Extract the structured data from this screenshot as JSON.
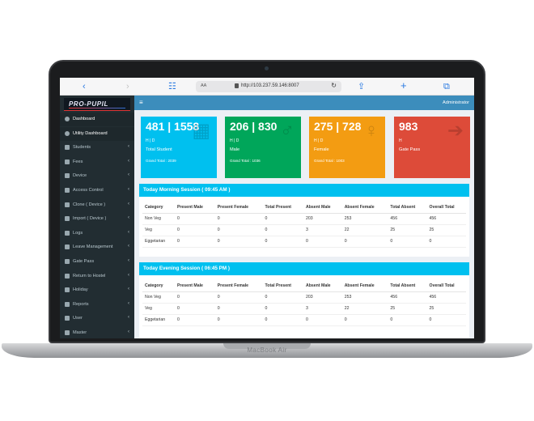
{
  "device": {
    "label": "MacBook Air"
  },
  "browser": {
    "aa": "AA",
    "url": "http://103.237.59.146:8007"
  },
  "app": {
    "logo_text": "PRO-PUPIL",
    "user": "Administrator"
  },
  "sidebar": {
    "items": [
      {
        "label": "Dashboard",
        "icon": "dashboard-icon",
        "active": true,
        "chevron": ""
      },
      {
        "label": "Utility Dashboard",
        "icon": "dashboard-icon",
        "active": true,
        "chevron": ""
      },
      {
        "label": "Students",
        "icon": "users-icon",
        "active": false,
        "chevron": "‹"
      },
      {
        "label": "Fees",
        "icon": "money-icon",
        "active": false,
        "chevron": "‹"
      },
      {
        "label": "Device",
        "icon": "device-icon",
        "active": false,
        "chevron": "‹"
      },
      {
        "label": "Access Control",
        "icon": "lock-icon",
        "active": false,
        "chevron": "‹"
      },
      {
        "label": "Clone ( Device )",
        "icon": "clone-icon",
        "active": false,
        "chevron": "‹"
      },
      {
        "label": "Import ( Device )",
        "icon": "import-icon",
        "active": false,
        "chevron": "‹"
      },
      {
        "label": "Logs",
        "icon": "log-icon",
        "active": false,
        "chevron": "‹"
      },
      {
        "label": "Leave Management",
        "icon": "leave-icon",
        "active": false,
        "chevron": "‹"
      },
      {
        "label": "Gate Pass",
        "icon": "gate-icon",
        "active": false,
        "chevron": "‹"
      },
      {
        "label": "Return to Hostel",
        "icon": "return-icon",
        "active": false,
        "chevron": "‹"
      },
      {
        "label": "Holiday",
        "icon": "calendar-icon",
        "active": false,
        "chevron": "‹"
      },
      {
        "label": "Reports",
        "icon": "report-icon",
        "active": false,
        "chevron": "‹"
      },
      {
        "label": "User",
        "icon": "user-icon",
        "active": false,
        "chevron": "‹"
      },
      {
        "label": "Master",
        "icon": "gear-icon",
        "active": false,
        "chevron": "‹"
      }
    ]
  },
  "stats": {
    "total": {
      "value": "481 | 1558",
      "sub": "H | D",
      "label": "Total Student",
      "grand": "Grand Total : 2039",
      "color": "#00c0ef"
    },
    "male": {
      "value": "206 | 830",
      "sub": "H | D",
      "label": "Male",
      "grand": "Grand Total : 1036",
      "color": "#00a65a"
    },
    "female": {
      "value": "275 | 728",
      "sub": "H | D",
      "label": "Female",
      "grand": "Grand Total : 1003",
      "color": "#f39c12"
    },
    "gatepass": {
      "value": "983",
      "sub": "H",
      "label": "Gate Pass",
      "grand": "",
      "color": "#dd4b39"
    }
  },
  "columns": [
    "Category",
    "Present Male",
    "Present Female",
    "Total Present",
    "Absent Male",
    "Absent Female",
    "Total Absent",
    "Overall Total"
  ],
  "sessions": [
    {
      "title": "Today Morning Session ( 09:45 AM )",
      "rows": [
        [
          "Non Veg",
          "0",
          "0",
          "0",
          "203",
          "253",
          "456",
          "456"
        ],
        [
          "Veg",
          "0",
          "0",
          "0",
          "3",
          "22",
          "25",
          "25"
        ],
        [
          "Eggetarian",
          "0",
          "0",
          "0",
          "0",
          "0",
          "0",
          "0"
        ]
      ]
    },
    {
      "title": "Today Evening Session ( 06:45 PM )",
      "rows": [
        [
          "Non Veg",
          "0",
          "0",
          "0",
          "203",
          "253",
          "456",
          "456"
        ],
        [
          "Veg",
          "0",
          "0",
          "0",
          "3",
          "22",
          "25",
          "25"
        ],
        [
          "Eggetarian",
          "0",
          "0",
          "0",
          "0",
          "0",
          "0",
          "0"
        ]
      ]
    }
  ]
}
